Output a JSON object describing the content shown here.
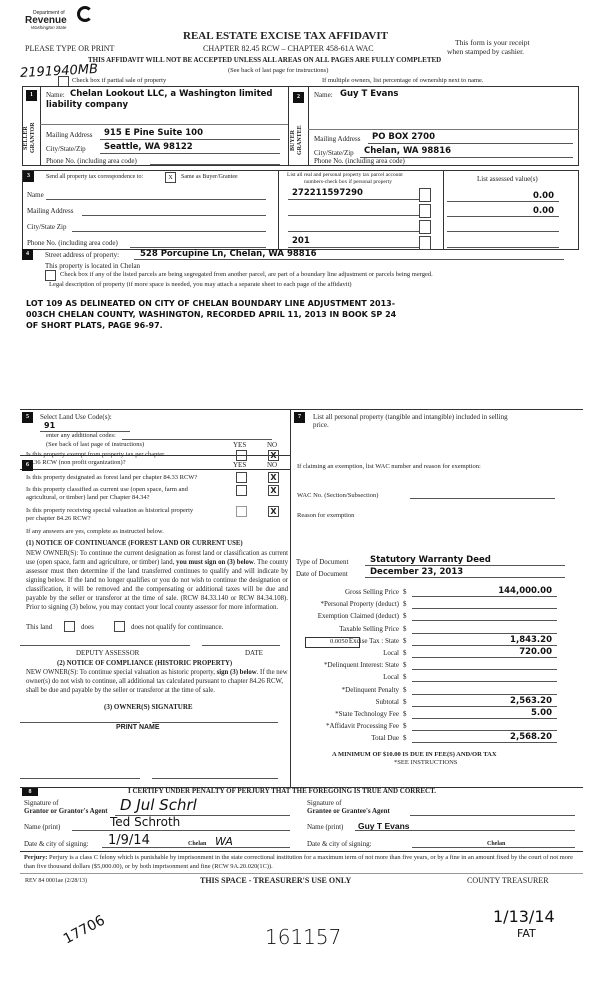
{
  "header": {
    "logo_text": {
      "dept": "Department of",
      "name": "Revenue",
      "state": "Washington State"
    },
    "title": "REAL ESTATE EXCISE TAX AFFIDAVIT",
    "please": "PLEASE TYPE OR PRINT",
    "chapter": "CHAPTER 82.45 RCW – CHAPTER 458-61A WAC",
    "receipt1": "This form is your receipt",
    "receipt2": "when stamped by cashier.",
    "warning": "THIS AFFIDAVIT WILL NOT BE ACCEPTED UNLESS ALL AREAS ON ALL PAGES ARE FULLY COMPLETED",
    "see_back": "(See back of last page for instructions)",
    "partial_sale": "Check box if partial sale of property",
    "multiple_owners": "If multiple owners, list percentage of ownership next to name.",
    "handwritten_code": "2191940MB"
  },
  "seller": {
    "num": "1",
    "side1": "SELLER",
    "side2": "GRANTOR",
    "name_label": "Name:",
    "name": "Chelan Lookout LLC, a Washington limited",
    "name2": "liability company",
    "mailing_label": "Mailing Address",
    "mailing": "915 E Pine Suite 100",
    "city_label": "City/State/Zip",
    "city": "Seattle, WA 98122",
    "phone_label": "Phone No. (including area code)"
  },
  "buyer": {
    "num": "2",
    "side1": "BUYER",
    "side2": "GRANTEE",
    "name_label": "Name:",
    "name": "Guy T Evans",
    "mailing_label": "Mailing Address",
    "mailing": "PO BOX 2700",
    "city_label": "City/State/Zip",
    "city": "Chelan, WA 98816",
    "phone_label": "Phone No. (including area code)"
  },
  "section3": {
    "num": "3",
    "send_label": "Send all property tax correspondence to:",
    "same_checked": "X",
    "same_label": "Same as Buyer/Grantee",
    "name_label": "Name",
    "mailing_label": "Mailing Address",
    "city_label": "City/State Zip",
    "phone_label": "Phone No. (including area code)",
    "parcel_header1": "List all real and personal property tax parcel account",
    "parcel_header2": "numbers-check box if personal property",
    "assessed_header": "List assessed value(s)",
    "parcels": [
      "272211597290",
      "",
      "",
      "201"
    ],
    "assessed": [
      "0.00",
      "0.00",
      "",
      ""
    ]
  },
  "section4": {
    "num": "4",
    "street_label": "Street address of property:",
    "street": "528 Porcupine Ln, Chelan, WA 98816",
    "located": "This property is located in Chelan",
    "segregated": "Check box if any of the listed parcels are being segregated from another parcel, are part of a boundary line adjustment or parcels being merged.",
    "legal_label": "Legal description of property (if more space is needed, you may attach a separate sheet to each page of the affidavit)",
    "legal": [
      "LOT 109 AS DELINEATED ON CITY OF CHELAN BOUNDARY LINE ADJUSTMENT 2013-",
      "003CH CHELAN COUNTY, WASHINGTON, RECORDED APRIL 11, 2013 IN BOOK SP 24",
      "OF SHORT PLATS, PAGE 96-97."
    ]
  },
  "section5": {
    "num": "5",
    "land_use_label": "Select Land Use Code(s):",
    "land_use": "91",
    "additional": "enter any additional codes:",
    "see_back": "(See back of last page of instructions)",
    "yes": "YES",
    "no": "NO",
    "exempt_q1": "Is this property exempt from property tax per chapter",
    "exempt_q2": "84.36 RCW (non profit organization)?",
    "exempt_no": "X"
  },
  "section6": {
    "num": "6",
    "yes": "YES",
    "no": "NO",
    "questions": [
      {
        "l1": "Is this property designated as forest land per chapter 84.33 RCW?",
        "l2": "",
        "no": "X"
      },
      {
        "l1": "Is this property classified as current use (open space, farm and",
        "l2": "agricultural, or timber) land per Chapter 84.34?",
        "no": "X"
      },
      {
        "l1": "Is this property receiving special valuation as historical property",
        "l2": "per chapter 84.26 RCW?",
        "no": "X"
      }
    ],
    "if_yes": "If any answers are yes, complete as instructed below.",
    "notice1_title": "(1) NOTICE OF CONTINUANCE (FOREST LAND OR CURRENT USE)",
    "notice1_a": "NEW OWNER(S): To continue the current designation as forest land or classification as current use (open space, farm and agriculture, or timber) land, ",
    "notice1_bold": "you must sign on (3) below",
    "notice1_b": ". The county assessor must then determine if the land transferred continues to qualify and will indicate by signing below. If the land no longer qualifies or you do not wish to continue the designation or classification, it will be removed and the compensating or additional taxes will be due and payable by the seller or transferor at the time of sale. (RCW 84.33.140 or RCW 84.34.108). Prior to signing (3) below, you may contact your local county assessor for more information.",
    "this_land": "This land",
    "does": "does",
    "does_not": "does not qualify for continuance.",
    "deputy": "DEPUTY ASSESSOR",
    "date": "DATE",
    "notice2_title": "(2) NOTICE OF COMPLIANCE (HISTORIC PROPERTY)",
    "notice2_a": "NEW OWNER(S): To continue special valuation as historic property, ",
    "notice2_bold": "sign (3) below",
    "notice2_b": ". If the new owner(s) do not wish to continue, all additional tax calculated pursuant to chapter 84.26 RCW, shall be due and payable by the seller or transferor at the time of sale.",
    "owner_sig": "(3) OWNER(S) SIGNATURE",
    "print_name": "PRINT NAME"
  },
  "section7": {
    "num": "7",
    "personal_l1": "List all personal property (tangible and intangible) included in selling",
    "personal_l2": "price.",
    "exemption": "If claiming an exemption, list WAC number and reason for exemption:",
    "wac_label": "WAC No. (Section/Subsection)",
    "reason_label": "Reason for exemption",
    "doc_type_label": "Type of Document",
    "doc_type": "Statutory Warranty Deed",
    "doc_date_label": "Date of Document",
    "doc_date": "December 23, 2013",
    "rate": "0.0050",
    "fees": [
      {
        "label": "Gross Selling Price",
        "value": "144,000.00"
      },
      {
        "label": "*Personal Property (deduct)",
        "value": ""
      },
      {
        "label": "Exemption Claimed (deduct)",
        "value": ""
      },
      {
        "label": "Taxable Selling Price",
        "value": ""
      },
      {
        "label": "Excise Tax :  State",
        "value": "1,843.20"
      },
      {
        "label": "Local",
        "value": "720.00"
      },
      {
        "label": "*Delinquent Interest:  State",
        "value": ""
      },
      {
        "label": "Local",
        "value": ""
      },
      {
        "label": "*Delinquent Penalty",
        "value": ""
      },
      {
        "label": "Subtotal",
        "value": "2,563.20"
      },
      {
        "label": "*State Technology Fee",
        "value": "5.00"
      },
      {
        "label": "*Affidavit Processing Fee",
        "value": ""
      },
      {
        "label": "Total Due",
        "value": "2,568.20"
      }
    ],
    "currency": "$",
    "minimum": "A MINIMUM OF $10.00 IS DUE IN FEE(S) AND/OR TAX",
    "see_instructions": "*SEE INSTRUCTIONS"
  },
  "section8": {
    "num": "8",
    "certify": "I CERTIFY UNDER PENALTY OF PERJURY THAT THE FOREGOING IS TRUE AND CORRECT.",
    "sig_of": "Signature of",
    "grantor_agent": "Grantor or Grantor's Agent",
    "grantee_agent": "Grantee or Grantee's Agent",
    "name_print": "Name (print)",
    "grantor_name": "Ted Schroth",
    "grantee_name": "Guy T Evans",
    "date_city": "Date & city of signing:",
    "grantor_date": "1/9/14",
    "grantor_city": "Chelan",
    "grantor_state": "WA",
    "grantee_city": "Chelan",
    "perjury_bold": "Perjury:",
    "perjury": " Perjury is a class C felony which is punishable by imprisonment in the state correctional institution for a maximum term of not more than five years, or by a fine in an amount fixed by the court of not more than five thousand dollars ($5,000.00), or by both imprisonment and fine (RCW 9A.20.020(1C))."
  },
  "footer": {
    "rev": "REV 84 0001ae (2/28/13)",
    "treasurer_use": "THIS SPACE - TREASURER'S USE ONLY",
    "county": "COUNTY TREASURER",
    "hand1": "17706",
    "hand2": "161157",
    "hand3": "1/13/14",
    "hand4": "FAT"
  }
}
